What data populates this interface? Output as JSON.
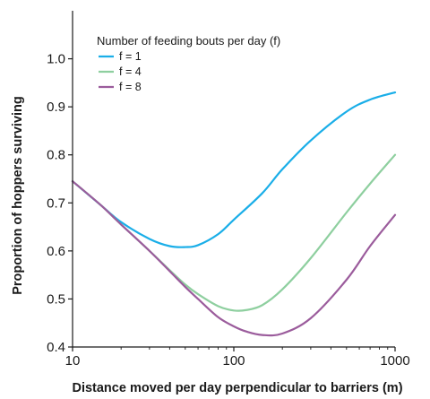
{
  "chart_data": {
    "type": "line",
    "title": "",
    "xlabel": "Distance moved per day perpendicular to barriers (m)",
    "ylabel": "Proportion of hoppers surviving",
    "xscale": "log",
    "xlim": [
      10,
      1000
    ],
    "ylim": [
      0.4,
      1.1
    ],
    "xticks": [
      {
        "value": 10,
        "label": "10"
      },
      {
        "value": 100,
        "label": "100"
      },
      {
        "value": 1000,
        "label": "1000"
      }
    ],
    "yticks": [
      {
        "value": 0.4,
        "label": "0.4"
      },
      {
        "value": 0.5,
        "label": "0.5"
      },
      {
        "value": 0.6,
        "label": "0.6"
      },
      {
        "value": 0.7,
        "label": "0.7"
      },
      {
        "value": 0.8,
        "label": "0.8"
      },
      {
        "value": 0.9,
        "label": "0.9"
      },
      {
        "value": 1.0,
        "label": "1.0"
      }
    ],
    "grid": false,
    "legend": {
      "title": "Number of feeding bouts per day (f)",
      "placement": "top-left"
    },
    "series": [
      {
        "name": "f = 1",
        "color": "#1aaee8",
        "points": [
          [
            10,
            0.745
          ],
          [
            15,
            0.695
          ],
          [
            20,
            0.66
          ],
          [
            30,
            0.625
          ],
          [
            40,
            0.61
          ],
          [
            50,
            0.608
          ],
          [
            60,
            0.612
          ],
          [
            80,
            0.635
          ],
          [
            100,
            0.665
          ],
          [
            150,
            0.72
          ],
          [
            200,
            0.77
          ],
          [
            300,
            0.83
          ],
          [
            500,
            0.89
          ],
          [
            700,
            0.915
          ],
          [
            1000,
            0.93
          ]
        ]
      },
      {
        "name": "f = 4",
        "color": "#8ecf9f",
        "points": [
          [
            10,
            0.745
          ],
          [
            15,
            0.695
          ],
          [
            20,
            0.655
          ],
          [
            30,
            0.6
          ],
          [
            40,
            0.56
          ],
          [
            50,
            0.53
          ],
          [
            60,
            0.51
          ],
          [
            80,
            0.485
          ],
          [
            100,
            0.476
          ],
          [
            120,
            0.477
          ],
          [
            150,
            0.487
          ],
          [
            200,
            0.52
          ],
          [
            300,
            0.585
          ],
          [
            500,
            0.68
          ],
          [
            700,
            0.74
          ],
          [
            1000,
            0.8
          ]
        ]
      },
      {
        "name": "f = 8",
        "color": "#9b5c9c",
        "points": [
          [
            10,
            0.745
          ],
          [
            15,
            0.695
          ],
          [
            20,
            0.655
          ],
          [
            30,
            0.6
          ],
          [
            40,
            0.558
          ],
          [
            50,
            0.525
          ],
          [
            60,
            0.5
          ],
          [
            80,
            0.462
          ],
          [
            100,
            0.443
          ],
          [
            120,
            0.432
          ],
          [
            150,
            0.425
          ],
          [
            200,
            0.428
          ],
          [
            300,
            0.46
          ],
          [
            500,
            0.54
          ],
          [
            700,
            0.61
          ],
          [
            1000,
            0.675
          ]
        ]
      }
    ]
  }
}
